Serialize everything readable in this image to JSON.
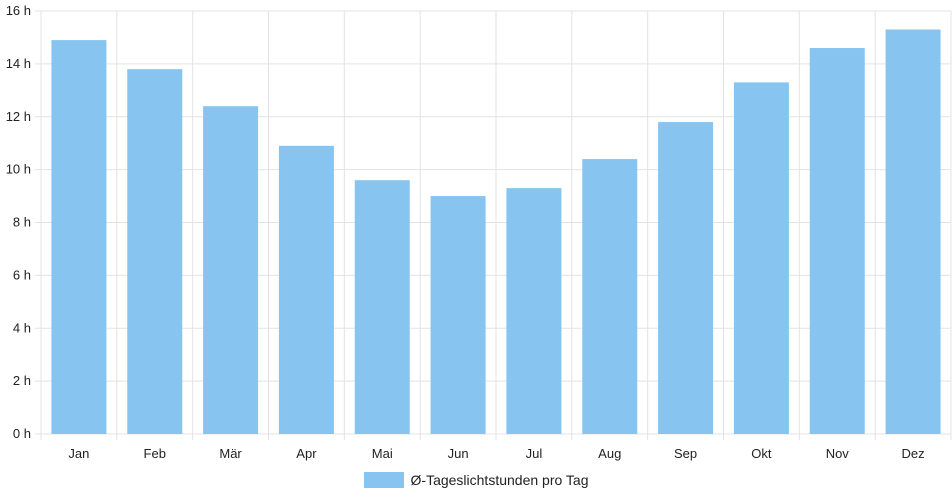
{
  "chart_data": {
    "type": "bar",
    "categories": [
      "Jan",
      "Feb",
      "Mär",
      "Apr",
      "Mai",
      "Jun",
      "Jul",
      "Aug",
      "Sep",
      "Okt",
      "Nov",
      "Dez"
    ],
    "series": [
      {
        "name": "Ø-Tageslichtstunden pro Tag",
        "values": [
          14.9,
          13.8,
          12.4,
          10.9,
          9.6,
          9.0,
          9.3,
          10.4,
          11.8,
          13.3,
          14.6,
          15.3
        ]
      }
    ],
    "y_ticks": [
      "0 h",
      "2 h",
      "4 h",
      "6 h",
      "8 h",
      "10 h",
      "12 h",
      "14 h",
      "16 h"
    ],
    "ylim": [
      0,
      16
    ],
    "grid": true,
    "legend_position": "bottom",
    "bar_color": "#87C5F0",
    "grid_color": "#e3e3e3"
  }
}
